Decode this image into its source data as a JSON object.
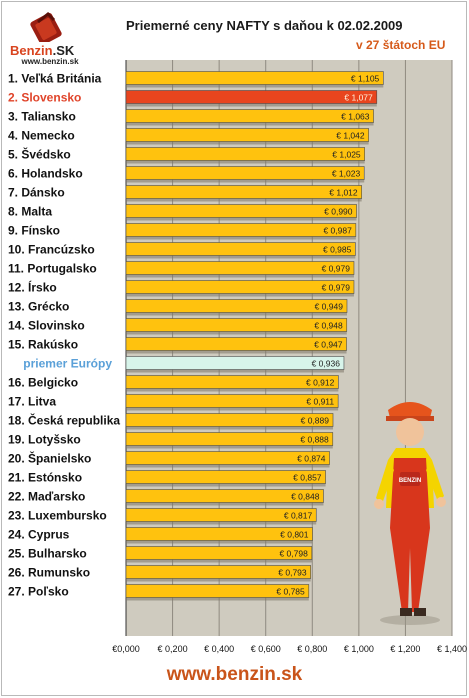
{
  "header": {
    "title": "Priemerné ceny NAFTY s daňou k 02.02.2009",
    "subtitle": "v 27 štátoch EU",
    "logo_text": "Benzin.SK",
    "logo_site": "www.benzin.sk"
  },
  "footer": {
    "site": "www.benzin.sk"
  },
  "colors": {
    "bar": "#ffc20e",
    "bar_highlight": "#e8451e",
    "bar_average": "#d7f4ea",
    "plot_bg": "#cfcbbf",
    "label_highlight": "#e0442a",
    "label_average": "#5aa0d8"
  },
  "chart_data": {
    "type": "bar",
    "orientation": "horizontal",
    "categories": [
      "1. Veľká Británia",
      "2. Slovensko",
      "3. Taliansko",
      "4. Nemecko",
      "5. Švédsko",
      "6. Holandsko",
      "7. Dánsko",
      "8. Malta",
      "9. Fínsko",
      "10. Francúzsko",
      "11. Portugalsko",
      "12. Írsko",
      "13. Grécko",
      "14. Slovinsko",
      "15. Rakúsko",
      "priemer Európy",
      "16. Belgicko",
      "17. Litva",
      "18. Česká republika",
      "19. Lotyšsko",
      "20. Španielsko",
      "21. Estónsko",
      "22. Maďarsko",
      "23. Luxembursko",
      "24. Cyprus",
      "25. Bulharsko",
      "26. Rumunsko",
      "27. Poľsko"
    ],
    "values": [
      1.105,
      1.077,
      1.063,
      1.042,
      1.025,
      1.023,
      1.012,
      0.99,
      0.987,
      0.985,
      0.979,
      0.979,
      0.949,
      0.948,
      0.947,
      0.936,
      0.912,
      0.911,
      0.889,
      0.888,
      0.874,
      0.857,
      0.848,
      0.817,
      0.801,
      0.798,
      0.793,
      0.785
    ],
    "value_labels": [
      "€ 1,105",
      "€ 1,077",
      "€ 1,063",
      "€ 1,042",
      "€ 1,025",
      "€ 1,023",
      "€ 1,012",
      "€ 0,990",
      "€ 0,987",
      "€ 0,985",
      "€ 0,979",
      "€ 0,979",
      "€ 0,949",
      "€ 0,948",
      "€ 0,947",
      "€ 0,936",
      "€ 0,912",
      "€ 0,911",
      "€ 0,889",
      "€ 0,888",
      "€ 0,874",
      "€ 0,857",
      "€ 0,848",
      "€ 0,817",
      "€ 0,801",
      "€ 0,798",
      "€ 0,793",
      "€ 0,785"
    ],
    "highlight_index": 1,
    "average_index": 15,
    "xlim": [
      0,
      1.4
    ],
    "x_ticks": [
      0,
      0.2,
      0.4,
      0.6,
      0.8,
      1.0,
      1.2,
      1.4
    ],
    "x_tick_labels": [
      "€0,000",
      "€ 0,200",
      "€ 0,400",
      "€ 0,600",
      "€ 0,800",
      "€ 1,000",
      "€ 1,200",
      "€ 1,400"
    ],
    "grid": true,
    "legend": "none"
  }
}
